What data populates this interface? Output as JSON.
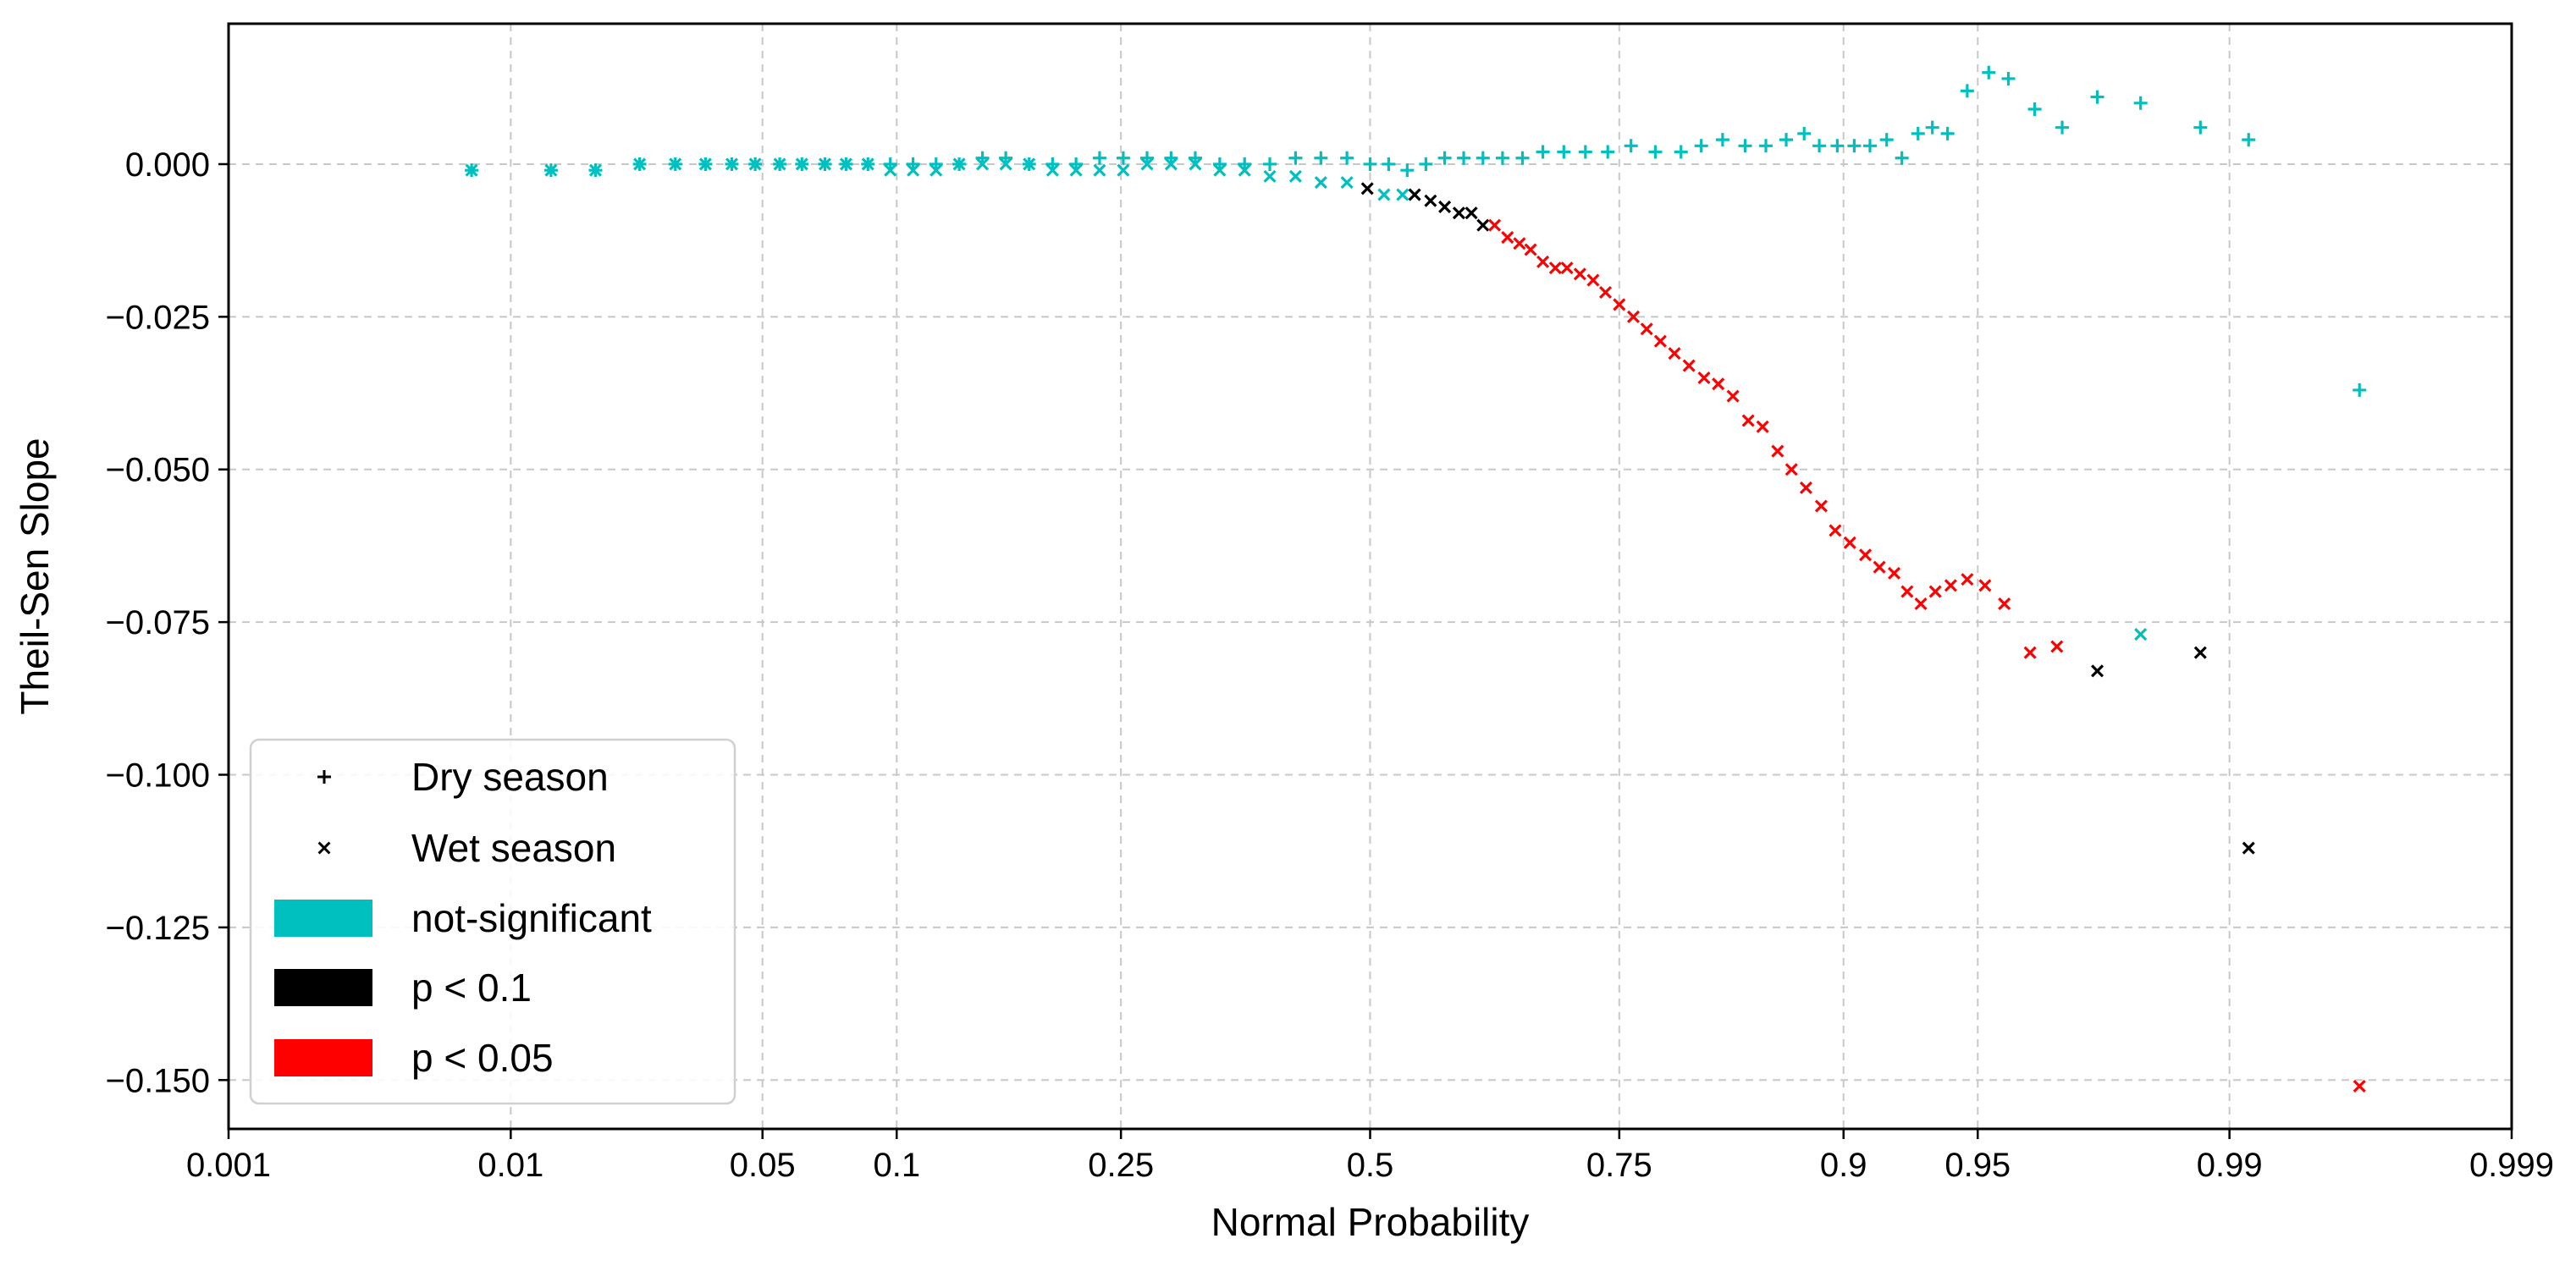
{
  "chart_data": {
    "type": "scatter",
    "xlabel": "Normal Probability",
    "ylabel": "Theil-Sen Slope",
    "x_scale": "normal-probability",
    "xlim": [
      0.001,
      0.999
    ],
    "ylim": [
      -0.158,
      0.023
    ],
    "grid": true,
    "legend_position": "lower-left",
    "x_ticks": [
      {
        "value": 0.001,
        "label": "0.001"
      },
      {
        "value": 0.01,
        "label": "0.01"
      },
      {
        "value": 0.05,
        "label": "0.05"
      },
      {
        "value": 0.1,
        "label": "0.1"
      },
      {
        "value": 0.25,
        "label": "0.25"
      },
      {
        "value": 0.5,
        "label": "0.5"
      },
      {
        "value": 0.75,
        "label": "0.75"
      },
      {
        "value": 0.9,
        "label": "0.9"
      },
      {
        "value": 0.95,
        "label": "0.95"
      },
      {
        "value": 0.99,
        "label": "0.99"
      },
      {
        "value": 0.999,
        "label": "0.999"
      }
    ],
    "y_ticks": [
      {
        "value": 0.0,
        "label": "0.000"
      },
      {
        "value": -0.025,
        "label": "−0.025"
      },
      {
        "value": -0.05,
        "label": "−0.050"
      },
      {
        "value": -0.075,
        "label": "−0.075"
      },
      {
        "value": -0.1,
        "label": "−0.100"
      },
      {
        "value": -0.125,
        "label": "−0.125"
      },
      {
        "value": -0.15,
        "label": "−0.150"
      }
    ],
    "colors": {
      "not_significant": "#00bfbf",
      "p_lt_0_1": "#000000",
      "p_lt_0_05": "#ff0000"
    },
    "legend": [
      {
        "kind": "marker",
        "marker": "+",
        "label": "Dry season"
      },
      {
        "kind": "marker",
        "marker": "x",
        "label": "Wet season"
      },
      {
        "kind": "patch",
        "color": "#00bfbf",
        "label": "not-significant"
      },
      {
        "kind": "patch",
        "color": "#000000",
        "label": "p < 0.1"
      },
      {
        "kind": "patch",
        "color": "#ff0000",
        "label": "p < 0.05"
      }
    ],
    "series": [
      {
        "name": "Dry season",
        "marker": "+",
        "points": [
          [
            0.0075,
            -0.001,
            "ns"
          ],
          [
            0.0133,
            -0.001,
            "ns"
          ],
          [
            0.018,
            -0.001,
            "ns"
          ],
          [
            0.024,
            0.0,
            "ns"
          ],
          [
            0.03,
            0.0,
            "ns"
          ],
          [
            0.036,
            0.0,
            "ns"
          ],
          [
            0.042,
            0.0,
            "ns"
          ],
          [
            0.048,
            0.0,
            "ns"
          ],
          [
            0.055,
            0.0,
            "ns"
          ],
          [
            0.062,
            0.0,
            "ns"
          ],
          [
            0.07,
            0.0,
            "ns"
          ],
          [
            0.078,
            0.0,
            "ns"
          ],
          [
            0.087,
            0.0,
            "ns"
          ],
          [
            0.097,
            0.0,
            "ns"
          ],
          [
            0.108,
            0.0,
            "ns"
          ],
          [
            0.12,
            0.0,
            "ns"
          ],
          [
            0.133,
            0.0,
            "ns"
          ],
          [
            0.147,
            0.001,
            "ns"
          ],
          [
            0.162,
            0.001,
            "ns"
          ],
          [
            0.178,
            0.0,
            "ns"
          ],
          [
            0.195,
            0.0,
            "ns"
          ],
          [
            0.213,
            0.0,
            "ns"
          ],
          [
            0.232,
            0.001,
            "ns"
          ],
          [
            0.252,
            0.001,
            "ns"
          ],
          [
            0.273,
            0.001,
            "ns"
          ],
          [
            0.295,
            0.001,
            "ns"
          ],
          [
            0.318,
            0.001,
            "ns"
          ],
          [
            0.342,
            0.0,
            "ns"
          ],
          [
            0.367,
            0.0,
            "ns"
          ],
          [
            0.393,
            0.0,
            "ns"
          ],
          [
            0.42,
            0.001,
            "ns"
          ],
          [
            0.447,
            0.001,
            "ns"
          ],
          [
            0.475,
            0.001,
            "ns"
          ],
          [
            0.5,
            0.0,
            "ns"
          ],
          [
            0.52,
            0.0,
            "ns"
          ],
          [
            0.54,
            -0.001,
            "ns"
          ],
          [
            0.56,
            0.0,
            "ns"
          ],
          [
            0.58,
            0.001,
            "ns"
          ],
          [
            0.6,
            0.001,
            "ns"
          ],
          [
            0.62,
            0.001,
            "ns"
          ],
          [
            0.64,
            0.001,
            "ns"
          ],
          [
            0.66,
            0.001,
            "ns"
          ],
          [
            0.68,
            0.002,
            "ns"
          ],
          [
            0.7,
            0.002,
            "ns"
          ],
          [
            0.72,
            0.002,
            "ns"
          ],
          [
            0.74,
            0.002,
            "ns"
          ],
          [
            0.76,
            0.003,
            "ns"
          ],
          [
            0.78,
            0.002,
            "ns"
          ],
          [
            0.8,
            0.002,
            "ns"
          ],
          [
            0.815,
            0.003,
            "ns"
          ],
          [
            0.83,
            0.004,
            "ns"
          ],
          [
            0.845,
            0.003,
            "ns"
          ],
          [
            0.858,
            0.003,
            "ns"
          ],
          [
            0.87,
            0.004,
            "ns"
          ],
          [
            0.88,
            0.005,
            "ns"
          ],
          [
            0.888,
            0.003,
            "ns"
          ],
          [
            0.897,
            0.003,
            "ns"
          ],
          [
            0.905,
            0.003,
            "ns"
          ],
          [
            0.912,
            0.003,
            "ns"
          ],
          [
            0.919,
            0.004,
            "ns"
          ],
          [
            0.925,
            0.001,
            "ns"
          ],
          [
            0.931,
            0.005,
            "ns"
          ],
          [
            0.936,
            0.006,
            "ns"
          ],
          [
            0.941,
            0.005,
            "ns"
          ],
          [
            0.947,
            0.012,
            "ns"
          ],
          [
            0.953,
            0.015,
            "ns"
          ],
          [
            0.958,
            0.014,
            "ns"
          ],
          [
            0.964,
            0.009,
            "ns"
          ],
          [
            0.9695,
            0.006,
            "ns"
          ],
          [
            0.9755,
            0.011,
            "ns"
          ],
          [
            0.9815,
            0.01,
            "ns"
          ],
          [
            0.9877,
            0.006,
            "ns"
          ],
          [
            0.9913,
            0.004,
            "ns"
          ],
          [
            0.9963,
            -0.037,
            "ns"
          ]
        ]
      },
      {
        "name": "Wet season",
        "marker": "x",
        "points": [
          [
            0.0075,
            -0.001,
            "ns"
          ],
          [
            0.0133,
            -0.001,
            "ns"
          ],
          [
            0.018,
            -0.001,
            "ns"
          ],
          [
            0.024,
            0.0,
            "ns"
          ],
          [
            0.03,
            0.0,
            "ns"
          ],
          [
            0.036,
            0.0,
            "ns"
          ],
          [
            0.042,
            0.0,
            "ns"
          ],
          [
            0.048,
            0.0,
            "ns"
          ],
          [
            0.055,
            0.0,
            "ns"
          ],
          [
            0.062,
            0.0,
            "ns"
          ],
          [
            0.07,
            0.0,
            "ns"
          ],
          [
            0.078,
            0.0,
            "ns"
          ],
          [
            0.087,
            0.0,
            "ns"
          ],
          [
            0.097,
            -0.001,
            "ns"
          ],
          [
            0.108,
            -0.001,
            "ns"
          ],
          [
            0.12,
            -0.001,
            "ns"
          ],
          [
            0.133,
            0.0,
            "ns"
          ],
          [
            0.147,
            0.0,
            "ns"
          ],
          [
            0.162,
            0.0,
            "ns"
          ],
          [
            0.178,
            0.0,
            "ns"
          ],
          [
            0.195,
            -0.001,
            "ns"
          ],
          [
            0.213,
            -0.001,
            "ns"
          ],
          [
            0.232,
            -0.001,
            "ns"
          ],
          [
            0.252,
            -0.001,
            "ns"
          ],
          [
            0.273,
            0.0,
            "ns"
          ],
          [
            0.295,
            0.0,
            "ns"
          ],
          [
            0.318,
            0.0,
            "ns"
          ],
          [
            0.342,
            -0.001,
            "ns"
          ],
          [
            0.367,
            -0.001,
            "ns"
          ],
          [
            0.393,
            -0.002,
            "ns"
          ],
          [
            0.42,
            -0.002,
            "ns"
          ],
          [
            0.447,
            -0.003,
            "ns"
          ],
          [
            0.475,
            -0.003,
            "ns"
          ],
          [
            0.497,
            -0.004,
            "p1"
          ],
          [
            0.515,
            -0.005,
            "ns"
          ],
          [
            0.535,
            -0.005,
            "ns"
          ],
          [
            0.548,
            -0.005,
            "p1"
          ],
          [
            0.565,
            -0.006,
            "p1"
          ],
          [
            0.58,
            -0.007,
            "p1"
          ],
          [
            0.595,
            -0.008,
            "p1"
          ],
          [
            0.608,
            -0.008,
            "p1"
          ],
          [
            0.62,
            -0.01,
            "p1"
          ],
          [
            0.632,
            -0.01,
            "p05"
          ],
          [
            0.645,
            -0.012,
            "p05"
          ],
          [
            0.657,
            -0.013,
            "p05"
          ],
          [
            0.668,
            -0.014,
            "p05"
          ],
          [
            0.68,
            -0.016,
            "p05"
          ],
          [
            0.692,
            -0.017,
            "p05"
          ],
          [
            0.703,
            -0.017,
            "p05"
          ],
          [
            0.715,
            -0.018,
            "p05"
          ],
          [
            0.727,
            -0.019,
            "p05"
          ],
          [
            0.738,
            -0.021,
            "p05"
          ],
          [
            0.75,
            -0.023,
            "p05"
          ],
          [
            0.762,
            -0.025,
            "p05"
          ],
          [
            0.773,
            -0.027,
            "p05"
          ],
          [
            0.784,
            -0.029,
            "p05"
          ],
          [
            0.795,
            -0.031,
            "p05"
          ],
          [
            0.806,
            -0.033,
            "p05"
          ],
          [
            0.817,
            -0.035,
            "p05"
          ],
          [
            0.827,
            -0.036,
            "p05"
          ],
          [
            0.837,
            -0.038,
            "p05"
          ],
          [
            0.847,
            -0.042,
            "p05"
          ],
          [
            0.856,
            -0.043,
            "p05"
          ],
          [
            0.865,
            -0.047,
            "p05"
          ],
          [
            0.873,
            -0.05,
            "p05"
          ],
          [
            0.881,
            -0.053,
            "p05"
          ],
          [
            0.889,
            -0.056,
            "p05"
          ],
          [
            0.896,
            -0.06,
            "p05"
          ],
          [
            0.903,
            -0.062,
            "p05"
          ],
          [
            0.91,
            -0.064,
            "p05"
          ],
          [
            0.916,
            -0.066,
            "p05"
          ],
          [
            0.922,
            -0.067,
            "p05"
          ],
          [
            0.927,
            -0.07,
            "p05"
          ],
          [
            0.932,
            -0.072,
            "p05"
          ],
          [
            0.937,
            -0.07,
            "p05"
          ],
          [
            0.942,
            -0.069,
            "p05"
          ],
          [
            0.947,
            -0.068,
            "p05"
          ],
          [
            0.952,
            -0.069,
            "p05"
          ],
          [
            0.957,
            -0.072,
            "p05"
          ],
          [
            0.963,
            -0.08,
            "p05"
          ],
          [
            0.9685,
            -0.079,
            "p05"
          ],
          [
            0.9755,
            -0.083,
            "p1"
          ],
          [
            0.9815,
            -0.077,
            "ns"
          ],
          [
            0.9877,
            -0.08,
            "p1"
          ],
          [
            0.9913,
            -0.112,
            "p1"
          ],
          [
            0.9963,
            -0.151,
            "p05"
          ]
        ]
      }
    ]
  }
}
